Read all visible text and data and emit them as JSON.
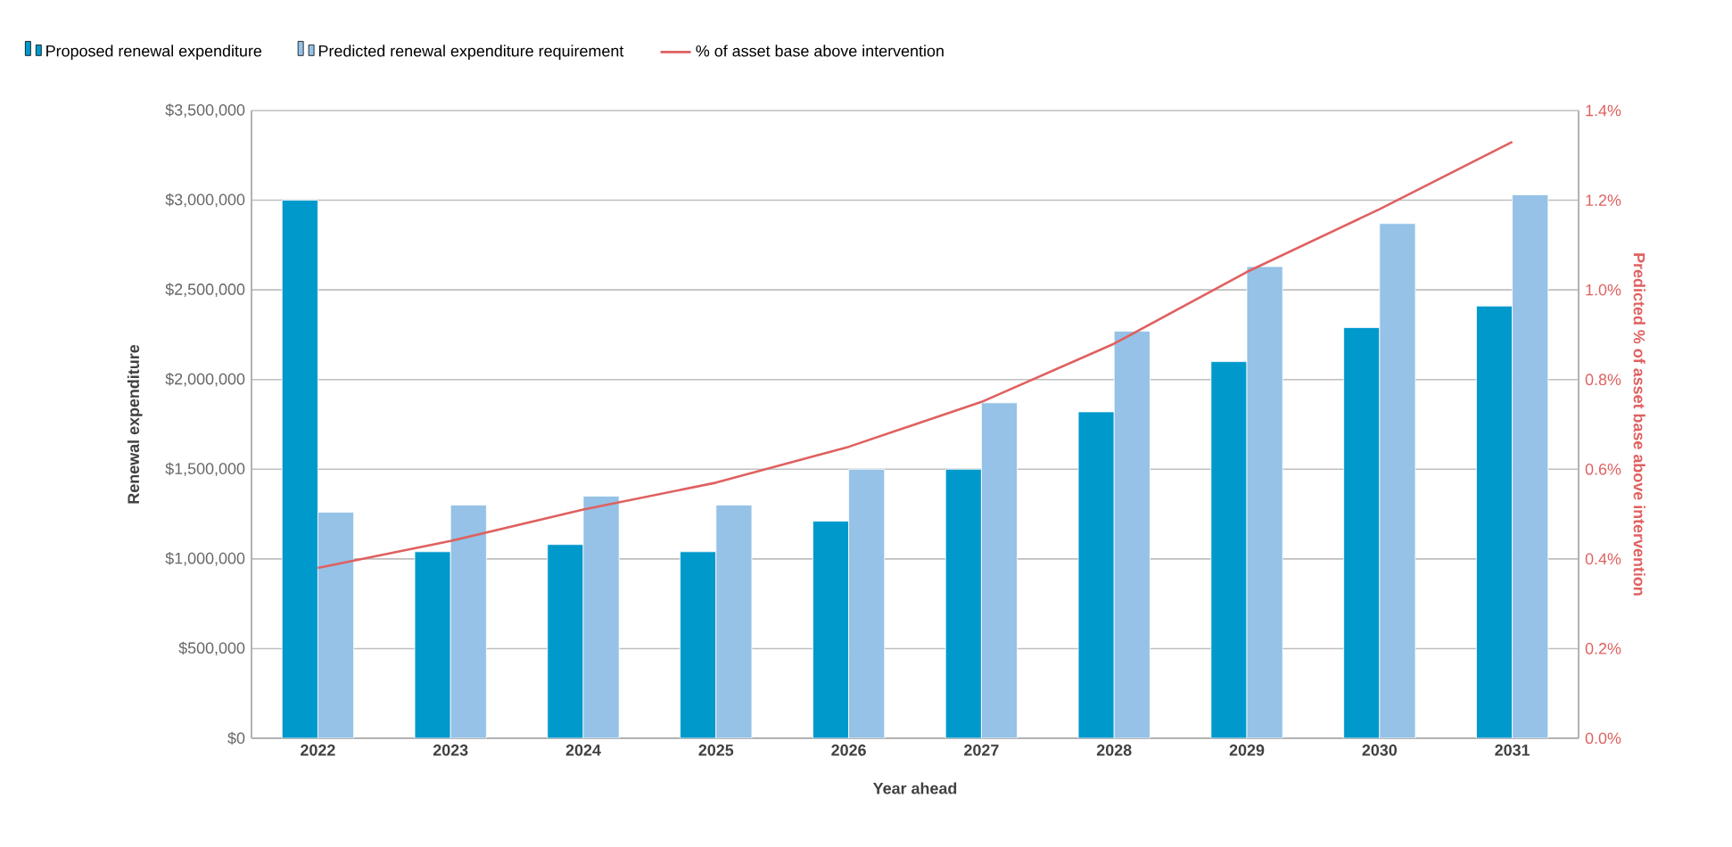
{
  "chart_data": {
    "type": "bar",
    "xlabel": "Year ahead",
    "ylabel": "Renewal expenditure",
    "y2label": "Predicted % of asset base above intervention",
    "categories": [
      "2022",
      "2023",
      "2024",
      "2025",
      "2026",
      "2027",
      "2028",
      "2029",
      "2030",
      "2031"
    ],
    "series": [
      {
        "name": "Proposed renewal expenditure",
        "color": "#0099cc",
        "values": [
          3000000,
          1040000,
          1080000,
          1040000,
          1210000,
          1500000,
          1820000,
          2100000,
          2290000,
          2410000
        ]
      },
      {
        "name": "Predicted renewal expenditure requirement",
        "color": "#95c2e6",
        "values": [
          1260000,
          1300000,
          1350000,
          1300000,
          1500000,
          1870000,
          2270000,
          2630000,
          2870000,
          3030000
        ]
      },
      {
        "name": "% of asset base above intervention",
        "type": "line",
        "axis": "y2",
        "color": "#e06060",
        "values": [
          0.38,
          0.44,
          0.51,
          0.57,
          0.65,
          0.75,
          0.88,
          1.04,
          1.18,
          1.33
        ]
      }
    ],
    "ylim": [
      0,
      3500000
    ],
    "yticks": [
      {
        "value": 0,
        "label": "$0"
      },
      {
        "value": 500000,
        "label": "$500,000"
      },
      {
        "value": 1000000,
        "label": "$1,000,000"
      },
      {
        "value": 1500000,
        "label": "$1,500,000"
      },
      {
        "value": 2000000,
        "label": "$2,000,000"
      },
      {
        "value": 2500000,
        "label": "$2,500,000"
      },
      {
        "value": 3000000,
        "label": "$3,000,000"
      },
      {
        "value": 3500000,
        "label": "$3,500,000"
      }
    ],
    "y2lim": [
      0,
      1.4
    ],
    "y2ticks": [
      {
        "value": 0,
        "label": "0.0%"
      },
      {
        "value": 0.2,
        "label": "0.2%"
      },
      {
        "value": 0.4,
        "label": "0.4%"
      },
      {
        "value": 0.6,
        "label": "0.6%"
      },
      {
        "value": 0.8,
        "label": "0.8%"
      },
      {
        "value": 1.0,
        "label": "1.0%"
      },
      {
        "value": 1.2,
        "label": "1.2%"
      },
      {
        "value": 1.4,
        "label": "1.4%"
      }
    ],
    "grid": "y",
    "legend": "top"
  }
}
